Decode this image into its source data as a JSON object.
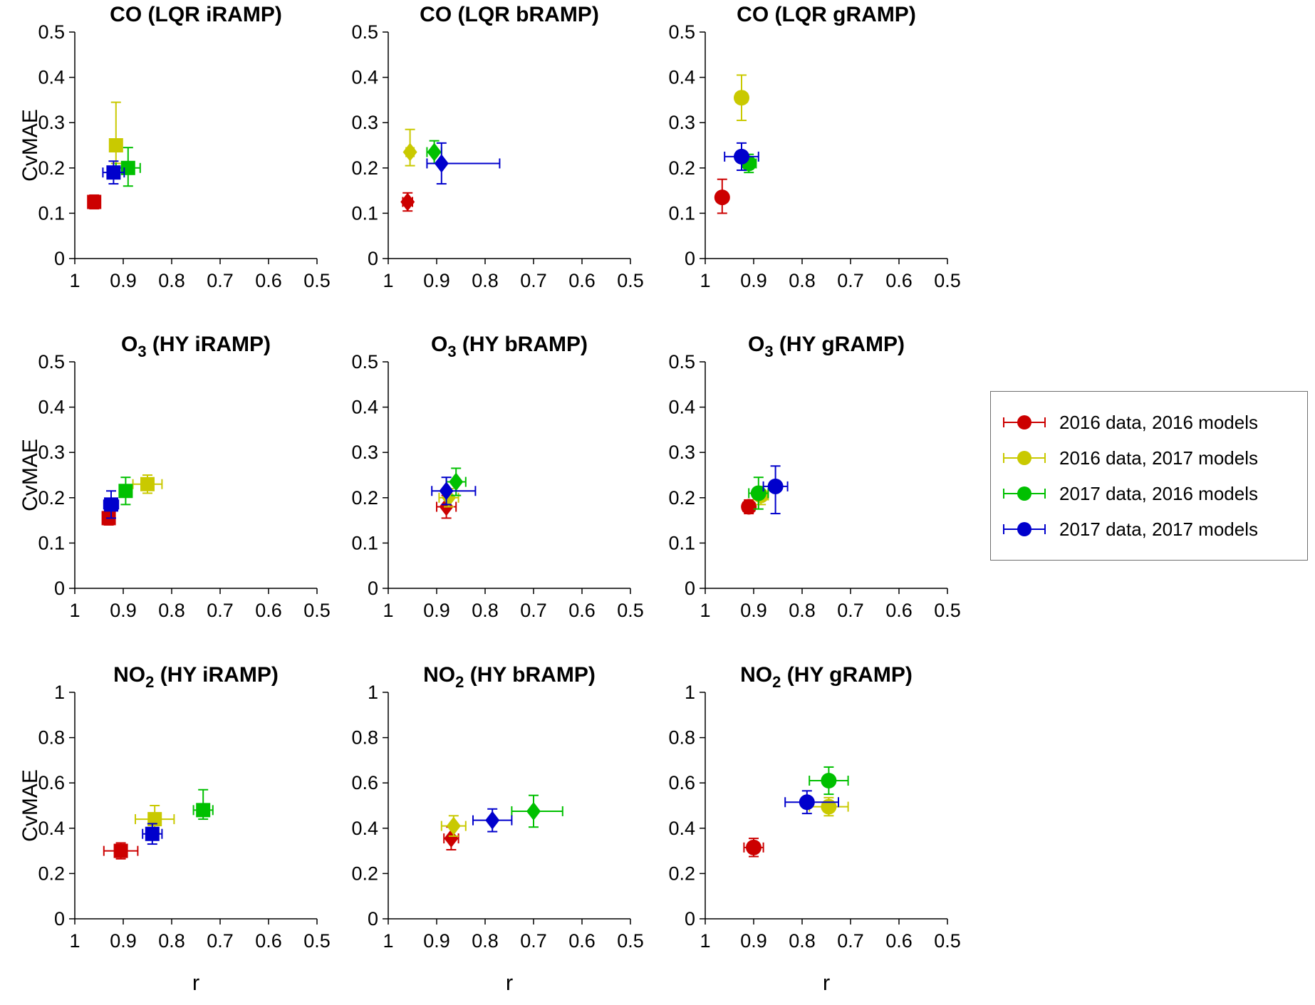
{
  "figure": {
    "ylabel": "CvMAE",
    "xlabel": "r"
  },
  "legend": {
    "items": [
      {
        "label": "2016 data, 2016 models",
        "color": "#cc0000"
      },
      {
        "label": "2016 data, 2017 models",
        "color": "#c9c900"
      },
      {
        "label": "2017 data, 2016 models",
        "color": "#00c000"
      },
      {
        "label": "2017 data, 2017 models",
        "color": "#0000cc"
      }
    ]
  },
  "chart_data": [
    {
      "type": "scatter",
      "title": {
        "pre": "CO",
        "sub": "",
        "post": " (LQR iRAMP)"
      },
      "marker": "square",
      "xlim": [
        1,
        0.5
      ],
      "ylim": [
        0,
        0.5
      ],
      "xticks": [
        1,
        0.9,
        0.8,
        0.7,
        0.6,
        0.5
      ],
      "yticks": [
        0,
        0.1,
        0.2,
        0.3,
        0.4,
        0.5
      ],
      "ylabel": "CvMAE",
      "xlabel": "",
      "points": [
        {
          "series": 0,
          "x": 0.96,
          "y": 0.125,
          "xerr": 0.012,
          "yerr": 0.015
        },
        {
          "series": 1,
          "x": 0.915,
          "y": 0.25,
          "xerr": 0.012,
          "yerr": [
            0.04,
            0.095
          ]
        },
        {
          "series": 2,
          "x": 0.89,
          "y": 0.2,
          "xerr": 0.025,
          "yerr": [
            0.04,
            0.045
          ]
        },
        {
          "series": 3,
          "x": 0.92,
          "y": 0.19,
          "xerr": 0.022,
          "yerr": 0.025
        }
      ]
    },
    {
      "type": "scatter",
      "title": {
        "pre": "CO",
        "sub": "",
        "post": " (LQR bRAMP)"
      },
      "marker": "diamond",
      "xlim": [
        1,
        0.5
      ],
      "ylim": [
        0,
        0.5
      ],
      "xticks": [
        1,
        0.9,
        0.8,
        0.7,
        0.6,
        0.5
      ],
      "yticks": [
        0,
        0.1,
        0.2,
        0.3,
        0.4,
        0.5
      ],
      "ylabel": "",
      "xlabel": "",
      "points": [
        {
          "series": 0,
          "x": 0.96,
          "y": 0.125,
          "xerr": 0.01,
          "yerr": 0.02
        },
        {
          "series": 1,
          "x": 0.955,
          "y": 0.235,
          "xerr": 0.008,
          "yerr": [
            0.03,
            0.05
          ]
        },
        {
          "series": 2,
          "x": 0.905,
          "y": 0.235,
          "xerr": 0.015,
          "yerr": 0.025
        },
        {
          "series": 3,
          "x": 0.89,
          "y": 0.21,
          "xerr": [
            0.12,
            0.03
          ],
          "yerr": 0.045
        }
      ]
    },
    {
      "type": "scatter",
      "title": {
        "pre": "CO",
        "sub": "",
        "post": " (LQR gRAMP)"
      },
      "marker": "circle",
      "xlim": [
        1,
        0.5
      ],
      "ylim": [
        0,
        0.5
      ],
      "xticks": [
        1,
        0.9,
        0.8,
        0.7,
        0.6,
        0.5
      ],
      "yticks": [
        0,
        0.1,
        0.2,
        0.3,
        0.4,
        0.5
      ],
      "ylabel": "",
      "xlabel": "",
      "points": [
        {
          "series": 0,
          "x": 0.965,
          "y": 0.135,
          "xerr": 0.01,
          "yerr": [
            0.035,
            0.04
          ]
        },
        {
          "series": 1,
          "x": 0.925,
          "y": 0.355,
          "xerr": 0.012,
          "yerr": 0.05
        },
        {
          "series": 2,
          "x": 0.91,
          "y": 0.21,
          "xerr": 0.015,
          "yerr": 0.02
        },
        {
          "series": 3,
          "x": 0.925,
          "y": 0.225,
          "xerr": 0.035,
          "yerr": 0.03
        }
      ]
    },
    {
      "type": "scatter",
      "title": {
        "pre": "O",
        "sub": "3",
        "post": " (HY iRAMP)"
      },
      "marker": "square",
      "xlim": [
        1,
        0.5
      ],
      "ylim": [
        0,
        0.5
      ],
      "xticks": [
        1,
        0.9,
        0.8,
        0.7,
        0.6,
        0.5
      ],
      "yticks": [
        0,
        0.1,
        0.2,
        0.3,
        0.4,
        0.5
      ],
      "ylabel": "CvMAE",
      "xlabel": "",
      "points": [
        {
          "series": 0,
          "x": 0.93,
          "y": 0.155,
          "xerr": 0.008,
          "yerr": 0.015
        },
        {
          "series": 1,
          "x": 0.85,
          "y": 0.23,
          "xerr": 0.03,
          "yerr": 0.02
        },
        {
          "series": 2,
          "x": 0.895,
          "y": 0.215,
          "xerr": 0.012,
          "yerr": 0.03
        },
        {
          "series": 3,
          "x": 0.925,
          "y": 0.185,
          "xerr": 0.015,
          "yerr": 0.03
        }
      ]
    },
    {
      "type": "scatter",
      "title": {
        "pre": "O",
        "sub": "3",
        "post": " (HY bRAMP)"
      },
      "marker": "diamond",
      "xlim": [
        1,
        0.5
      ],
      "ylim": [
        0,
        0.5
      ],
      "xticks": [
        1,
        0.9,
        0.8,
        0.7,
        0.6,
        0.5
      ],
      "yticks": [
        0,
        0.1,
        0.2,
        0.3,
        0.4,
        0.5
      ],
      "ylabel": "",
      "xlabel": "",
      "points": [
        {
          "series": 0,
          "x": 0.88,
          "y": 0.18,
          "xerr": 0.02,
          "yerr": 0.025
        },
        {
          "series": 1,
          "x": 0.875,
          "y": 0.2,
          "xerr": 0.02,
          "yerr": 0.02
        },
        {
          "series": 2,
          "x": 0.86,
          "y": 0.235,
          "xerr": 0.02,
          "yerr": 0.03
        },
        {
          "series": 3,
          "x": 0.88,
          "y": 0.215,
          "xerr": [
            0.06,
            0.03
          ],
          "yerr": 0.03
        }
      ]
    },
    {
      "type": "scatter",
      "title": {
        "pre": "O",
        "sub": "3",
        "post": " (HY gRAMP)"
      },
      "marker": "circle",
      "xlim": [
        1,
        0.5
      ],
      "ylim": [
        0,
        0.5
      ],
      "xticks": [
        1,
        0.9,
        0.8,
        0.7,
        0.6,
        0.5
      ],
      "yticks": [
        0,
        0.1,
        0.2,
        0.3,
        0.4,
        0.5
      ],
      "ylabel": "",
      "xlabel": "",
      "points": [
        {
          "series": 0,
          "x": 0.91,
          "y": 0.18,
          "xerr": 0.012,
          "yerr": 0.015
        },
        {
          "series": 1,
          "x": 0.885,
          "y": 0.205,
          "xerr": 0.015,
          "yerr": 0.02
        },
        {
          "series": 2,
          "x": 0.89,
          "y": 0.21,
          "xerr": 0.02,
          "yerr": 0.035
        },
        {
          "series": 3,
          "x": 0.855,
          "y": 0.225,
          "xerr": 0.025,
          "yerr": [
            0.06,
            0.045
          ]
        }
      ]
    },
    {
      "type": "scatter",
      "title": {
        "pre": "NO",
        "sub": "2",
        "post": " (HY iRAMP)"
      },
      "marker": "square",
      "xlim": [
        1,
        0.5
      ],
      "ylim": [
        0,
        1
      ],
      "xticks": [
        1,
        0.9,
        0.8,
        0.7,
        0.6,
        0.5
      ],
      "yticks": [
        0,
        0.2,
        0.4,
        0.6,
        0.8,
        1
      ],
      "ylabel": "CvMAE",
      "xlabel": "r",
      "points": [
        {
          "series": 0,
          "x": 0.905,
          "y": 0.3,
          "xerr": 0.035,
          "yerr": 0.035
        },
        {
          "series": 1,
          "x": 0.835,
          "y": 0.44,
          "xerr": 0.04,
          "yerr": 0.06
        },
        {
          "series": 2,
          "x": 0.735,
          "y": 0.48,
          "xerr": 0.02,
          "yerr": [
            0.04,
            0.09
          ]
        },
        {
          "series": 3,
          "x": 0.84,
          "y": 0.375,
          "xerr": 0.02,
          "yerr": 0.045
        }
      ]
    },
    {
      "type": "scatter",
      "title": {
        "pre": "NO",
        "sub": "2",
        "post": " (HY bRAMP)"
      },
      "marker": "diamond",
      "xlim": [
        1,
        0.5
      ],
      "ylim": [
        0,
        1
      ],
      "xticks": [
        1,
        0.9,
        0.8,
        0.7,
        0.6,
        0.5
      ],
      "yticks": [
        0,
        0.2,
        0.4,
        0.6,
        0.8,
        1
      ],
      "ylabel": "",
      "xlabel": "r",
      "points": [
        {
          "series": 0,
          "x": 0.87,
          "y": 0.355,
          "xerr": 0.015,
          "yerr": 0.05
        },
        {
          "series": 1,
          "x": 0.865,
          "y": 0.41,
          "xerr": 0.025,
          "yerr": 0.045
        },
        {
          "series": 2,
          "x": 0.7,
          "y": 0.475,
          "xerr": [
            0.06,
            0.045
          ],
          "yerr": 0.07
        },
        {
          "series": 3,
          "x": 0.785,
          "y": 0.435,
          "xerr": 0.04,
          "yerr": 0.05
        }
      ]
    },
    {
      "type": "scatter",
      "title": {
        "pre": "NO",
        "sub": "2",
        "post": " (HY gRAMP)"
      },
      "marker": "circle",
      "xlim": [
        1,
        0.5
      ],
      "ylim": [
        0,
        1
      ],
      "xticks": [
        1,
        0.9,
        0.8,
        0.7,
        0.6,
        0.5
      ],
      "yticks": [
        0,
        0.2,
        0.4,
        0.6,
        0.8,
        1
      ],
      "ylabel": "",
      "xlabel": "r",
      "points": [
        {
          "series": 0,
          "x": 0.9,
          "y": 0.315,
          "xerr": 0.02,
          "yerr": 0.04
        },
        {
          "series": 1,
          "x": 0.745,
          "y": 0.495,
          "xerr": 0.04,
          "yerr": 0.04
        },
        {
          "series": 2,
          "x": 0.745,
          "y": 0.61,
          "xerr": 0.04,
          "yerr": 0.06
        },
        {
          "series": 3,
          "x": 0.79,
          "y": 0.515,
          "xerr": [
            0.065,
            0.045
          ],
          "yerr": 0.05
        }
      ]
    }
  ]
}
